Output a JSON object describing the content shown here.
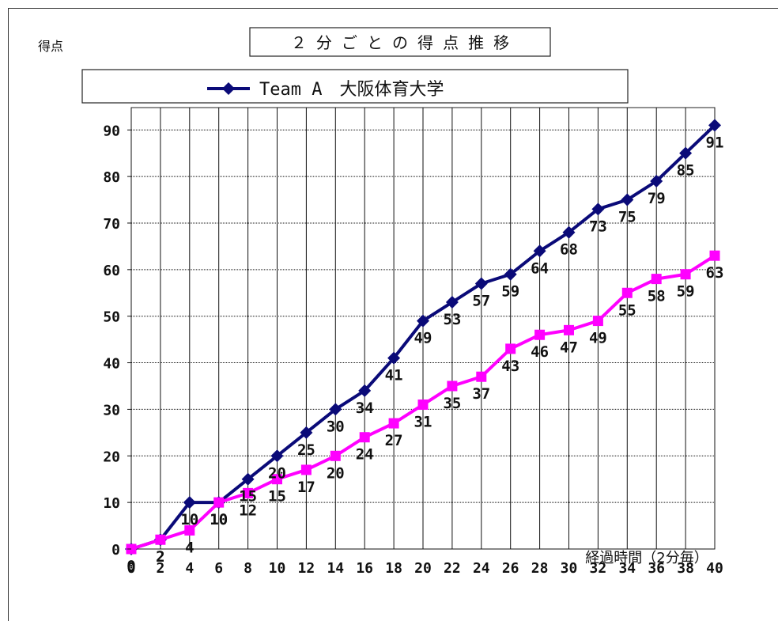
{
  "chart_data": {
    "type": "line",
    "title": "２ 分 ご と の 得 点 推 移",
    "ylabel": "得点",
    "xlabel": "経過時間（2分毎）",
    "x": [
      0,
      2,
      4,
      6,
      8,
      10,
      12,
      14,
      16,
      18,
      20,
      22,
      24,
      26,
      28,
      30,
      32,
      34,
      36,
      38,
      40
    ],
    "x_tick_labels": [
      "0",
      "2",
      "4",
      "6",
      "8",
      "10",
      "12",
      "14",
      "16",
      "18",
      "20",
      "22",
      "24",
      "26",
      "28",
      "30",
      "32",
      "34",
      "36",
      "38",
      "40"
    ],
    "ylim": [
      0,
      90
    ],
    "y_ticks": [
      0,
      10,
      20,
      30,
      40,
      50,
      60,
      70,
      80,
      90
    ],
    "grid": true,
    "legend_position": "top",
    "series": [
      {
        "name": "Team A　大阪体育大学",
        "color": "#0a0a78",
        "marker": "diamond",
        "values": [
          0,
          2,
          10,
          10,
          15,
          20,
          25,
          30,
          34,
          41,
          49,
          53,
          57,
          59,
          64,
          68,
          73,
          75,
          79,
          85,
          91
        ]
      },
      {
        "color": "#ff00ff",
        "marker": "square",
        "values": [
          0,
          2,
          4,
          10,
          12,
          15,
          17,
          20,
          24,
          27,
          31,
          35,
          37,
          43,
          46,
          47,
          49,
          55,
          58,
          59,
          63
        ]
      }
    ]
  }
}
